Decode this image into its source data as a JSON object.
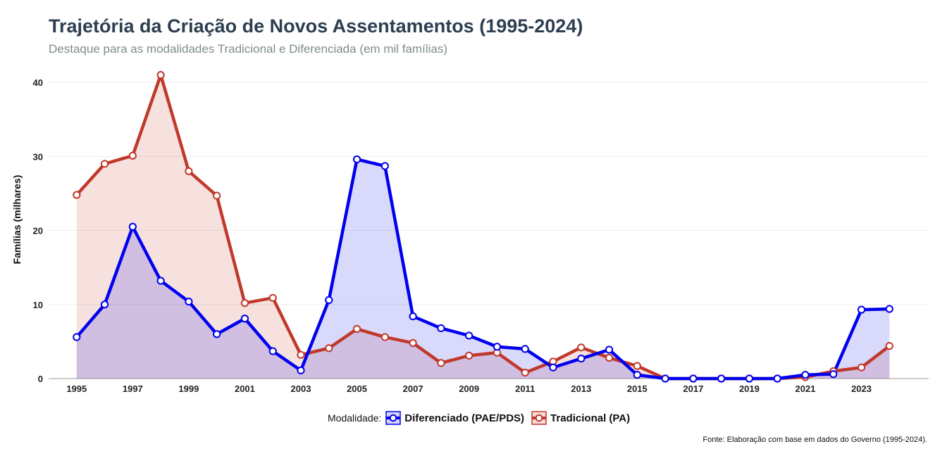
{
  "chart_data": {
    "type": "area",
    "title": "Trajetória da Criação de Novos Assentamentos (1995-2024)",
    "subtitle": "Destaque para as modalidades Tradicional e Diferenciada (em mil famílias)",
    "xlabel": "",
    "ylabel": "Famílias (milhares)",
    "x": [
      1995,
      1996,
      1997,
      1998,
      1999,
      2000,
      2001,
      2002,
      2003,
      2004,
      2005,
      2006,
      2007,
      2008,
      2009,
      2010,
      2011,
      2012,
      2013,
      2014,
      2015,
      2016,
      2017,
      2018,
      2019,
      2020,
      2021,
      2022,
      2023,
      2024
    ],
    "x_ticks": [
      "1995",
      "1997",
      "1999",
      "2001",
      "2003",
      "2005",
      "2007",
      "2009",
      "2011",
      "2013",
      "2015",
      "2017",
      "2019",
      "2021",
      "2023"
    ],
    "y_ticks": [
      "0",
      "10",
      "20",
      "30",
      "40"
    ],
    "xlim": [
      1994,
      2025.4
    ],
    "ylim": [
      0,
      42
    ],
    "grid": true,
    "legend_position": "bottom",
    "legend_title": "Modalidade:",
    "series": [
      {
        "name": "Tradicional (PA)",
        "color": "#c0392b",
        "fill": "#c0392b",
        "values": [
          24.8,
          29.0,
          30.1,
          41.0,
          28.0,
          24.7,
          10.2,
          10.9,
          3.2,
          4.1,
          6.7,
          5.6,
          4.8,
          2.1,
          3.1,
          3.5,
          0.8,
          2.3,
          4.2,
          2.8,
          1.7,
          0,
          0,
          0,
          0,
          0,
          0.2,
          1.0,
          1.5,
          4.4
        ]
      },
      {
        "name": "Diferenciado (PAE/PDS)",
        "color": "#0000ee",
        "fill": "#1010ee",
        "values": [
          5.6,
          10.0,
          20.5,
          13.2,
          10.4,
          6.0,
          8.1,
          3.7,
          1.1,
          10.6,
          29.6,
          28.7,
          8.4,
          6.8,
          5.8,
          4.3,
          4.0,
          1.5,
          2.7,
          3.9,
          0.5,
          0,
          0,
          0,
          0,
          0,
          0.5,
          0.6,
          9.3,
          9.4
        ]
      }
    ],
    "caption": "Fonte: Elaboração com base em dados do Governo (1995-2024)."
  }
}
